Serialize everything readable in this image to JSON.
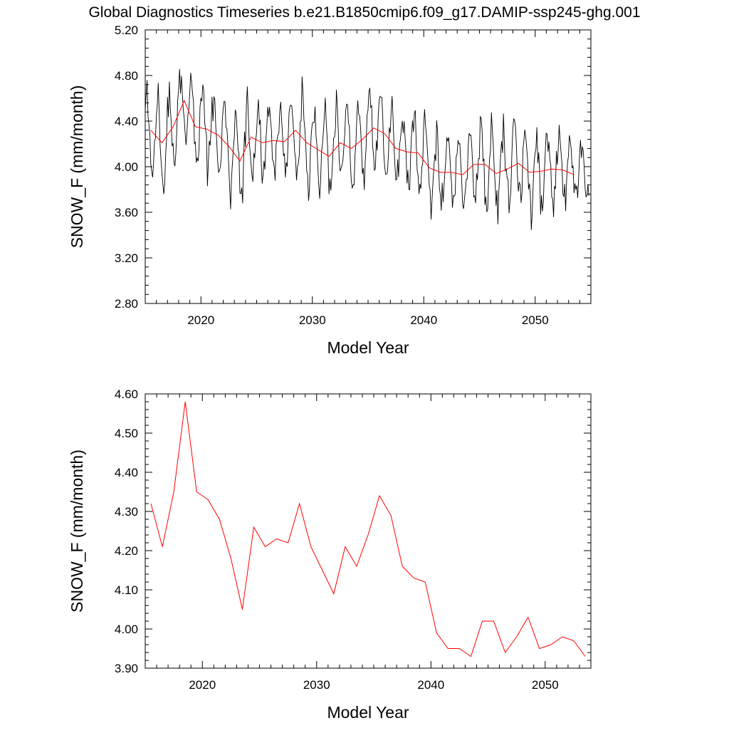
{
  "figure": {
    "title": "Global Diagnostics Timeseries b.e21.B1850cmip6.f09_g17.DAMIP-ssp245-ghg.001"
  },
  "chart_data": [
    {
      "type": "line",
      "title": "",
      "xlabel": "Model Year",
      "ylabel": "SNOW_F (mm/month)",
      "xlim": [
        2015.0,
        2055.0
      ],
      "ylim": [
        2.8,
        5.2
      ],
      "xticks": [
        2020,
        2030,
        2040,
        2050
      ],
      "yticks": [
        2.8,
        3.2,
        3.6,
        4.0,
        4.4,
        4.8,
        5.2
      ],
      "ytick_labels": [
        "2.80",
        "3.20",
        "3.60",
        "4.00",
        "4.40",
        "4.80",
        "5.20"
      ],
      "grid": false,
      "monthly_cycle": {
        "start": 2015.0,
        "end": 2054.9,
        "step": 0.0833,
        "amplitude": 0.42,
        "baseline_from": "annual"
      },
      "series": [
        {
          "color": "#000000",
          "kind": "monthly"
        },
        {
          "color": "#ff0000",
          "kind": "annual"
        }
      ]
    },
    {
      "type": "line",
      "title": "",
      "xlabel": "Model Year",
      "ylabel": "SNOW_F (mm/month)",
      "xlim": [
        2015.0,
        2054.0
      ],
      "ylim": [
        3.9,
        4.6
      ],
      "xticks": [
        2020,
        2030,
        2040,
        2050
      ],
      "yticks": [
        3.9,
        4.0,
        4.1,
        4.2,
        4.3,
        4.4,
        4.5,
        4.6
      ],
      "ytick_labels": [
        "3.90",
        "4.00",
        "4.10",
        "4.20",
        "4.30",
        "4.40",
        "4.50",
        "4.60"
      ],
      "grid": false,
      "series": [
        {
          "color": "#ff0000",
          "kind": "annual"
        }
      ]
    }
  ],
  "annual_x": [
    2015.5,
    2016.5,
    2017.5,
    2018.5,
    2019.5,
    2020.5,
    2021.5,
    2022.5,
    2023.5,
    2024.5,
    2025.5,
    2026.5,
    2027.5,
    2028.5,
    2029.5,
    2030.5,
    2031.5,
    2032.5,
    2033.5,
    2034.5,
    2035.5,
    2036.5,
    2037.5,
    2038.5,
    2039.5,
    2040.5,
    2041.5,
    2042.5,
    2043.5,
    2044.5,
    2045.5,
    2046.5,
    2047.5,
    2048.5,
    2049.5,
    2050.5,
    2051.5,
    2052.5,
    2053.5
  ],
  "annual_y": [
    4.32,
    4.21,
    4.35,
    4.58,
    4.35,
    4.33,
    4.28,
    4.18,
    4.05,
    4.26,
    4.21,
    4.23,
    4.22,
    4.32,
    4.21,
    4.15,
    4.09,
    4.21,
    4.16,
    4.24,
    4.34,
    4.29,
    4.16,
    4.13,
    4.12,
    3.99,
    3.95,
    3.95,
    3.93,
    4.02,
    4.02,
    3.94,
    3.98,
    4.03,
    3.95,
    3.96,
    3.98,
    3.97,
    3.93
  ]
}
